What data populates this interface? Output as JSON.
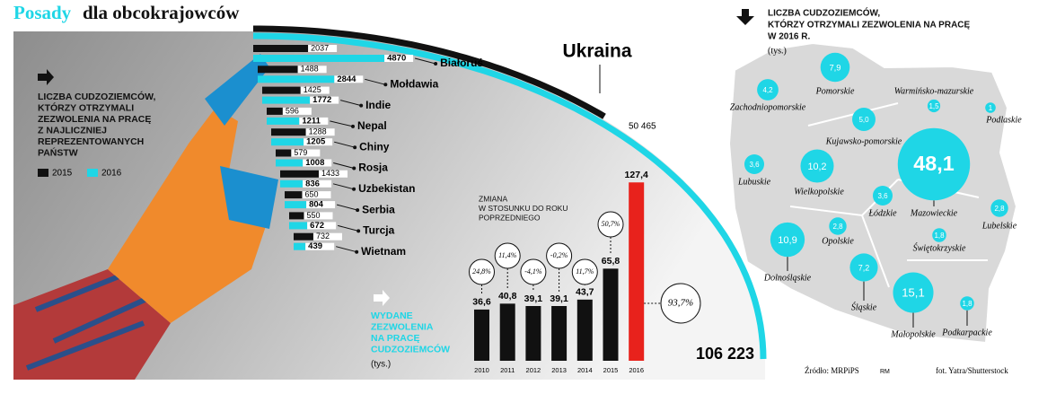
{
  "header": {
    "title_accent": "Posady",
    "title": "dla obcokrajowców"
  },
  "source": "Źródło: MRPiPS",
  "author": "RM",
  "credit": "fot. Yatra/Shutterstock",
  "chart_data": [
    {
      "type": "hbar",
      "title": [
        "LICZBA CUDZOZIEMCÓW,",
        "KTÓRZY OTRZYMALI",
        "ZEZWOLENIA NA PRACĘ",
        "Z NAJLICZNIEJ",
        "REPREZENTOWANYCH",
        "PAŃSTW"
      ],
      "categories": [
        "Ukraina",
        "Białoruś",
        "Mołdawia",
        "Indie",
        "Nepal",
        "Chiny",
        "Rosja",
        "Uzbekistan",
        "Serbia",
        "Turcja",
        "Wietnam"
      ],
      "series": [
        {
          "name": "2015",
          "color": "#111111",
          "values": [
            50465,
            2037,
            1488,
            1425,
            596,
            1288,
            579,
            1433,
            650,
            550,
            732
          ],
          "value_labels": [
            "50 465",
            "2037",
            "1488",
            "1425",
            "596",
            "1288",
            "579",
            "1433",
            "650",
            "550",
            "732"
          ]
        },
        {
          "name": "2016",
          "color": "#1fd6e6",
          "values": [
            106223,
            4870,
            2844,
            1772,
            1211,
            1205,
            1008,
            836,
            804,
            672,
            439
          ],
          "value_labels": [
            "106 223",
            "4870",
            "2844",
            "1772",
            "1211",
            "1205",
            "1008",
            "836",
            "804",
            "672",
            "439"
          ]
        }
      ]
    },
    {
      "type": "bar",
      "title": [
        "WYDANE",
        "ZEZWOLENIA",
        "NA PRACĘ",
        "CUDZOZIEMCÓW"
      ],
      "unit": "(tys.)",
      "categories": [
        "2010",
        "2011",
        "2012",
        "2013",
        "2014",
        "2015",
        "2016"
      ],
      "values": [
        36.6,
        40.8,
        39.1,
        39.1,
        43.7,
        65.8,
        127.4
      ],
      "value_labels": [
        "36,6",
        "40,8",
        "39,1",
        "39,1",
        "43,7",
        "65,8",
        "127,4"
      ],
      "colors": [
        "#111111",
        "#111111",
        "#111111",
        "#111111",
        "#111111",
        "#111111",
        "#e8221c"
      ],
      "change_title": [
        "ZMIANA",
        "W STOSUNKU DO ROKU",
        "POPRZEDNIEGO"
      ],
      "changes": [
        24.8,
        11.4,
        -4.1,
        -0.2,
        11.7,
        50.7,
        93.7
      ],
      "change_labels": [
        "24,8%",
        "11,4%",
        "-4,1%",
        "-0,2%",
        "11,7%",
        "50,7%",
        "93,7%"
      ]
    },
    {
      "type": "bubble",
      "title": [
        "LICZBA CUDZOZIEMCÓW,",
        "KTÓRZY OTRZYMALI ZEZWOLENIA NA PRACĘ",
        "W 2016 R."
      ],
      "unit": "(tys.)",
      "color": "#1fd6e6",
      "categories": [
        "Pomorskie",
        "Zachodniopomorskie",
        "Warmińsko-mazurskie",
        "Podlaskie",
        "Kujawsko-pomorskie",
        "Lubuskie",
        "Wielkopolskie",
        "Mazowieckie",
        "Łódzkie",
        "Lubelskie",
        "Opolskie",
        "Świętokrzyskie",
        "Dolnośląskie",
        "Śląskie",
        "Małopolskie",
        "Podkarpackie"
      ],
      "values": [
        7.9,
        4.2,
        1.5,
        1,
        5.0,
        3.6,
        10.2,
        48.1,
        3.6,
        2.8,
        2.8,
        1.8,
        10.9,
        7.2,
        15.1,
        1.8
      ],
      "value_labels": [
        "7,9",
        "4,2",
        "1,5",
        "1",
        "5,0",
        "3,6",
        "10,2",
        "48,1",
        "3,6",
        "2,8",
        "2,8",
        "1,8",
        "10,9",
        "7,2",
        "15,1",
        "1,8"
      ]
    }
  ]
}
